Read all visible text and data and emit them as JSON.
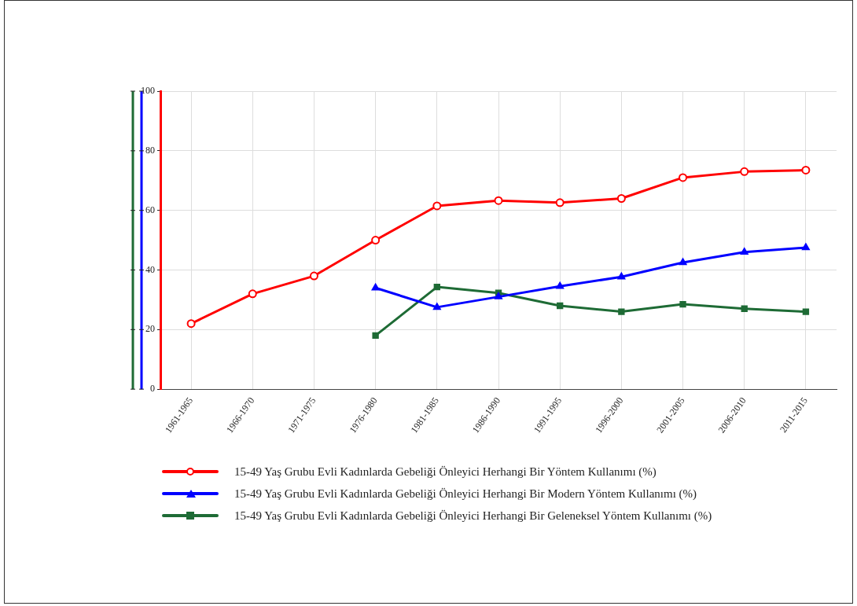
{
  "chart_data": {
    "type": "line",
    "categories": [
      "1961-1965",
      "1966-1970",
      "1971-1975",
      "1976-1980",
      "1981-1985",
      "1986-1990",
      "1991-1995",
      "1996-2000",
      "2001-2005",
      "2006-2010",
      "2011-2015"
    ],
    "series": [
      {
        "name": "15-49 Yaş Grubu Evli Kadınlarda Gebeliği Önleyici Herhangi Bir Yöntem Kullanımı (%)",
        "color": "#ff0000",
        "marker": "circle",
        "values": [
          22,
          32,
          38,
          50,
          61.5,
          63.3,
          62.6,
          64,
          71,
          73,
          73.5
        ]
      },
      {
        "name": "15-49 Yaş Grubu Evli Kadınlarda Gebeliği Önleyici Herhangi Bir Modern Yöntem Kullanımı (%)",
        "color": "#0000ff",
        "marker": "triangle",
        "values": [
          null,
          null,
          null,
          34,
          27.5,
          31,
          34.5,
          37.7,
          42.5,
          46,
          47.5
        ]
      },
      {
        "name": "15-49 Yaş Grubu Evli Kadınlarda Gebeliği Önleyici Herhangi Bir Geleneksel Yöntem Kullanımı (%)",
        "color": "#1e6b35",
        "marker": "square",
        "values": [
          null,
          null,
          null,
          18,
          34.3,
          32.3,
          28,
          26,
          28.5,
          27,
          26
        ]
      }
    ],
    "ylim": [
      0,
      100
    ],
    "yticks": [
      0,
      20,
      40,
      60,
      80,
      100
    ],
    "grid": true,
    "legend": "bottom"
  }
}
